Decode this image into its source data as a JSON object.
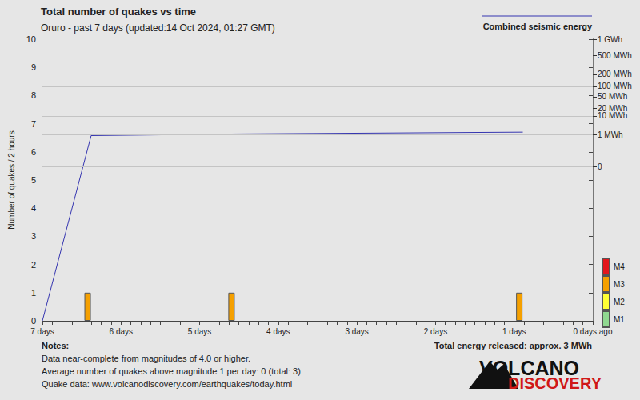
{
  "chart_data": {
    "type": "bar",
    "title": "Total number of quakes vs time",
    "subtitle": "Oruro - past 7 days (updated:14 Oct 2024, 01:27 GMT)",
    "ylabel": "Number of quakes / 2 hours",
    "xlim": [
      7,
      0
    ],
    "xticks": [
      {
        "value": 7,
        "label": "7 days"
      },
      {
        "value": 6,
        "label": "6 days"
      },
      {
        "value": 5,
        "label": "5 days"
      },
      {
        "value": 4,
        "label": "4 days"
      },
      {
        "value": 3,
        "label": "3 days"
      },
      {
        "value": 2,
        "label": "2 days"
      },
      {
        "value": 1,
        "label": "1 days"
      },
      {
        "value": 0,
        "label": "0 days ago"
      }
    ],
    "ylim": [
      0,
      10
    ],
    "yticks": [
      0,
      1,
      2,
      3,
      4,
      5,
      6,
      7,
      8,
      9,
      10
    ],
    "y2lim": [
      -2600,
      1000
    ],
    "y2ticks": [
      {
        "value": 0,
        "label": "0"
      },
      {
        "value": 1,
        "label": "1 MWh"
      },
      {
        "value": 10,
        "label": "10 MWh"
      },
      {
        "value": 20,
        "label": "20 MWh"
      },
      {
        "value": 50,
        "label": "50 MWh"
      },
      {
        "value": 100,
        "label": "100 MWh"
      },
      {
        "value": 200,
        "label": "200 MWh"
      },
      {
        "value": 500,
        "label": "500 MWh"
      },
      {
        "value": 1000,
        "label": "1 GWh"
      }
    ],
    "grid": true,
    "legend": "right",
    "series": [
      {
        "name": "M4",
        "type": "bar",
        "color": "#e3161c",
        "x": [],
        "values": []
      },
      {
        "name": "M3",
        "type": "bar",
        "color": "#f5a000",
        "x": [
          6.38,
          4.55,
          0.89
        ],
        "values": [
          1,
          1,
          1
        ]
      },
      {
        "name": "M2",
        "type": "bar",
        "color": "#ffff33",
        "x": [],
        "values": []
      },
      {
        "name": "M1",
        "type": "bar",
        "color": "#90d890",
        "x": [],
        "values": []
      },
      {
        "name": "Combined seismic energy",
        "type": "line",
        "axis": "y2",
        "color": "#3535b0",
        "x": [
          7,
          6.38,
          4.55,
          0.89
        ],
        "values": [
          -2600,
          0.85,
          1.1,
          1.45
        ]
      }
    ],
    "annotations": {
      "notes": [
        "Notes:",
        "Data near-complete from magnitudes of 4.0 or higher.",
        "Average number of quakes above magnitude 1 per day: 0 (total: 3)",
        "Quake data: www.volcanodiscovery.com/earthquakes/today.html"
      ],
      "energy_total": "Total energy released: approx. 3 MWh",
      "logo": [
        "VOLCANO",
        "DISCOVERY"
      ]
    }
  }
}
